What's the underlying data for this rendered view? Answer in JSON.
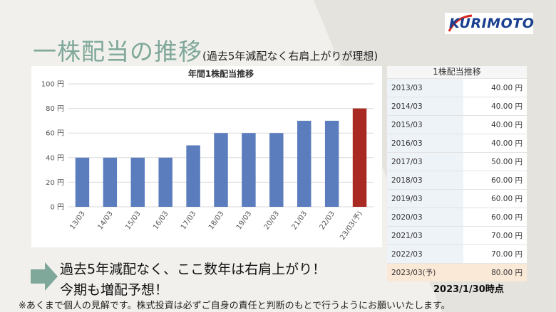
{
  "logo": {
    "text": "KURIMOTO"
  },
  "heading": {
    "main": "一株配当の推移",
    "sub": "(過去5年減配なく右肩上がりが理想)"
  },
  "chart_data": {
    "type": "bar",
    "title": "年間1株配当推移",
    "categories": [
      "13/03",
      "14/03",
      "15/03",
      "16/03",
      "17/03",
      "18/03",
      "19/03",
      "20/03",
      "21/03",
      "22/03",
      "23/03(予)"
    ],
    "values": [
      40,
      40,
      40,
      40,
      50,
      60,
      60,
      60,
      70,
      70,
      80
    ],
    "forecast_index": 10,
    "ylim": [
      0,
      100
    ],
    "y_ticks": [
      "0 円",
      "20 円",
      "40 円",
      "60 円",
      "80 円",
      "100 円"
    ],
    "grid": true,
    "colors": {
      "actual": "#5b7dbd",
      "forecast": "#a82a22"
    }
  },
  "table": {
    "title": "1株配当推移",
    "rows": [
      {
        "year": "2013/03",
        "value": "40.00 円"
      },
      {
        "year": "2014/03",
        "value": "40.00 円"
      },
      {
        "year": "2015/03",
        "value": "40.00 円"
      },
      {
        "year": "2016/03",
        "value": "40.00 円"
      },
      {
        "year": "2017/03",
        "value": "50.00 円"
      },
      {
        "year": "2018/03",
        "value": "60.00 円"
      },
      {
        "year": "2019/03",
        "value": "60.00 円"
      },
      {
        "year": "2020/03",
        "value": "60.00 円"
      },
      {
        "year": "2021/03",
        "value": "70.00 円"
      },
      {
        "year": "2022/03",
        "value": "70.00 円"
      },
      {
        "year": "2023/03(予)",
        "value": "80.00 円"
      }
    ]
  },
  "summary": {
    "line1": "過去5年減配なく、ここ数年は右肩上がり！",
    "line2": "今期も増配予想！"
  },
  "as_of": "2023/1/30時点",
  "footnote": "※あくまで個人の見解です。株式投資は必ずご自身の責任と判断のもとで行うようにお願いいたします。"
}
